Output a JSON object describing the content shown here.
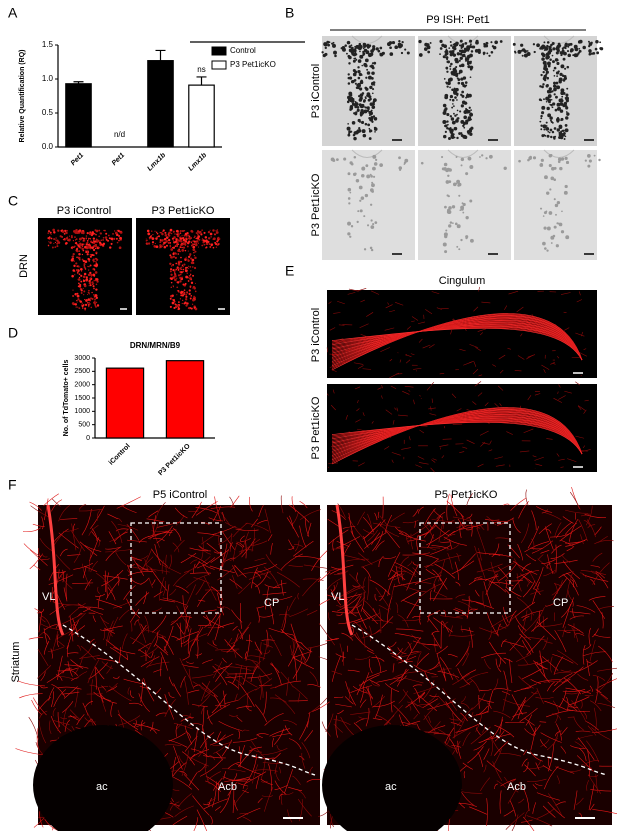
{
  "panel_labels": [
    "A",
    "B",
    "C",
    "D",
    "E",
    "F"
  ],
  "chart_data": [
    {
      "type": "bar",
      "ylabel": "Relative Quantification (RQ)",
      "categories": [
        "Pet1",
        "Pet1",
        "Lmx1b",
        "Lmx1b"
      ],
      "series": [
        {
          "name": "Control",
          "color": "#000000",
          "values": [
            0.93,
            null,
            1.27,
            null
          ],
          "errors": [
            0.03,
            null,
            0.15,
            null
          ]
        },
        {
          "name": "P3 Pet1icKO",
          "color": "#ffffff",
          "values": [
            null,
            null,
            null,
            0.91
          ],
          "errors": [
            null,
            null,
            null,
            0.12
          ]
        }
      ],
      "annotations": [
        "n/d",
        "ns"
      ],
      "ylim": [
        0,
        1.5
      ],
      "yticks": [
        {
          "value": 0,
          "label": "0.0"
        },
        0.5,
        {
          "value": 1,
          "label": "1.0"
        },
        1.5
      ]
    },
    {
      "type": "bar",
      "title": "DRN/MRN/B9",
      "ylabel": "No. of TdTomato+ cells",
      "categories": [
        "iControl",
        "P3 Pet1icKO"
      ],
      "values": [
        2620,
        2900
      ],
      "color": "#ff0000",
      "ylim": [
        0,
        3000
      ],
      "yticks": [
        0,
        500,
        1000,
        1500,
        2000,
        2500,
        3000
      ]
    }
  ],
  "panel_b": {
    "title": "P9 ISH: Pet1",
    "row_labels": [
      "P3 iControl",
      "P3 Pet1icKO"
    ]
  },
  "panel_c": {
    "column_labels": [
      "P3 iControl",
      "P3 Pet1icKO"
    ],
    "row_label": "DRN"
  },
  "panel_e": {
    "title": "Cingulum",
    "row_labels": [
      "P3 iControl",
      "P3 Pet1icKO"
    ]
  },
  "panel_f": {
    "column_labels": [
      "P5 iControl",
      "P5 Pet1icKO"
    ],
    "row_label": "Striatum",
    "regions": [
      [
        "VL",
        "CP",
        "ac",
        "Acb"
      ],
      [
        "VL",
        "CP",
        "ac",
        "Acb"
      ]
    ]
  }
}
